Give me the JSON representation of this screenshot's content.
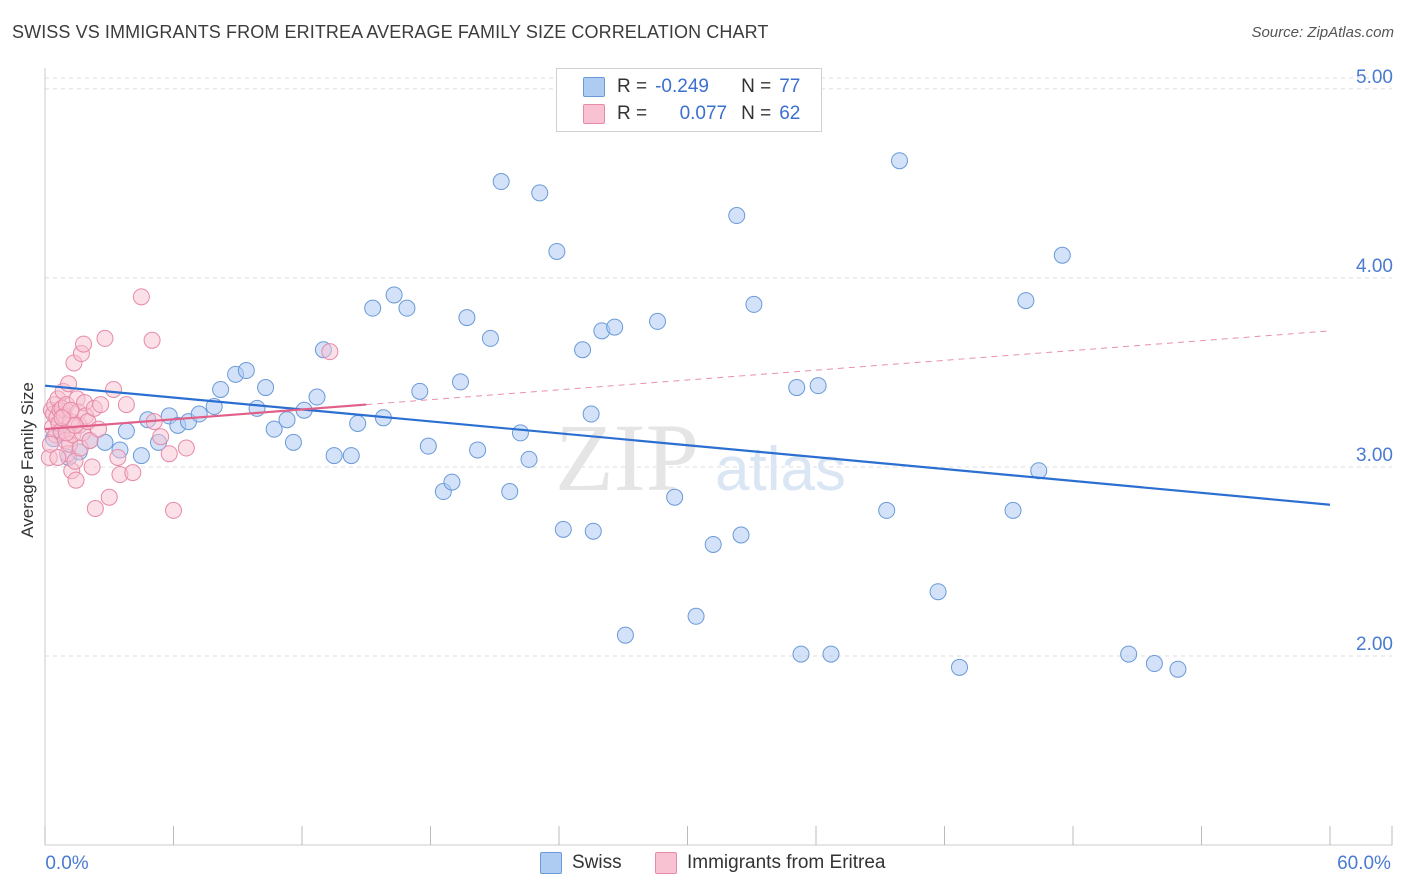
{
  "title": "SWISS VS IMMIGRANTS FROM ERITREA AVERAGE FAMILY SIZE CORRELATION CHART",
  "source": "Source: ZipAtlas.com",
  "watermark": {
    "zip": "ZIP",
    "atlas": "atlas"
  },
  "legend": {
    "swiss": {
      "r_label": "R =",
      "r_value": "-0.249",
      "n_label": "N =",
      "n_value": "77"
    },
    "eritrea": {
      "r_label": "R =",
      "r_value": "0.077",
      "n_label": "N =",
      "n_value": "62"
    }
  },
  "bottom_legend": {
    "swiss": "Swiss",
    "eritrea": "Immigrants from Eritrea"
  },
  "colors": {
    "swiss_fill": "#aecbf2",
    "swiss_stroke": "#6a9ad8",
    "swiss_line": "#2b6fd1",
    "eritrea_fill": "#f8c2d2",
    "eritrea_stroke": "#e68aa8",
    "eritrea_line": "#e0608a",
    "tick_text": "#4a7bd0",
    "grid": "#dddddd"
  },
  "chart_data": {
    "type": "scatter",
    "title": "SWISS VS IMMIGRANTS FROM ERITREA AVERAGE FAMILY SIZE CORRELATION CHART",
    "xlabel": "",
    "ylabel": "Average Family Size",
    "xlim": [
      0,
      60
    ],
    "ylim": [
      1.0,
      5.1
    ],
    "x_tick_labels": [
      "0.0%",
      "60.0%"
    ],
    "y_ticks": [
      2.0,
      3.0,
      4.0,
      5.0
    ],
    "y_tick_labels": [
      "2.00",
      "3.00",
      "4.00",
      "5.00"
    ],
    "grid": true,
    "legend_position": "top-center",
    "series": [
      {
        "name": "Swiss",
        "r": -0.249,
        "n": 77,
        "trend": {
          "x": [
            0,
            60
          ],
          "y": [
            3.43,
            2.8
          ]
        },
        "points": [
          [
            0.4,
            3.15
          ],
          [
            0.8,
            3.18
          ],
          [
            1.1,
            3.05
          ],
          [
            1.6,
            3.08
          ],
          [
            2.1,
            3.14
          ],
          [
            2.8,
            3.13
          ],
          [
            3.5,
            3.09
          ],
          [
            3.8,
            3.19
          ],
          [
            4.5,
            3.06
          ],
          [
            4.8,
            3.25
          ],
          [
            5.3,
            3.13
          ],
          [
            5.8,
            3.27
          ],
          [
            6.2,
            3.22
          ],
          [
            6.7,
            3.24
          ],
          [
            7.2,
            3.28
          ],
          [
            7.9,
            3.32
          ],
          [
            8.2,
            3.41
          ],
          [
            8.9,
            3.49
          ],
          [
            9.4,
            3.51
          ],
          [
            9.9,
            3.31
          ],
          [
            10.3,
            3.42
          ],
          [
            10.7,
            3.2
          ],
          [
            11.3,
            3.25
          ],
          [
            11.6,
            3.13
          ],
          [
            12.1,
            3.3
          ],
          [
            12.7,
            3.37
          ],
          [
            13.0,
            3.62
          ],
          [
            13.5,
            3.06
          ],
          [
            14.3,
            3.06
          ],
          [
            14.6,
            3.23
          ],
          [
            15.3,
            3.84
          ],
          [
            15.8,
            3.26
          ],
          [
            16.3,
            3.91
          ],
          [
            16.9,
            3.84
          ],
          [
            17.5,
            3.4
          ],
          [
            17.9,
            3.11
          ],
          [
            18.6,
            2.87
          ],
          [
            19.0,
            2.92
          ],
          [
            19.4,
            3.45
          ],
          [
            19.7,
            3.79
          ],
          [
            20.2,
            3.09
          ],
          [
            20.8,
            3.68
          ],
          [
            21.3,
            4.51
          ],
          [
            21.7,
            2.87
          ],
          [
            22.2,
            3.18
          ],
          [
            22.6,
            3.04
          ],
          [
            23.1,
            4.45
          ],
          [
            23.9,
            4.14
          ],
          [
            24.2,
            2.67
          ],
          [
            25.1,
            3.62
          ],
          [
            25.5,
            3.28
          ],
          [
            25.6,
            2.66
          ],
          [
            26.0,
            3.72
          ],
          [
            26.6,
            3.74
          ],
          [
            27.1,
            2.11
          ],
          [
            28.6,
            3.77
          ],
          [
            29.4,
            2.84
          ],
          [
            30.4,
            2.21
          ],
          [
            31.2,
            2.59
          ],
          [
            32.3,
            4.33
          ],
          [
            32.5,
            2.64
          ],
          [
            33.1,
            3.86
          ],
          [
            35.1,
            3.42
          ],
          [
            35.3,
            2.01
          ],
          [
            36.1,
            3.43
          ],
          [
            36.7,
            2.01
          ],
          [
            39.3,
            2.77
          ],
          [
            39.9,
            4.62
          ],
          [
            41.7,
            2.34
          ],
          [
            42.7,
            1.94
          ],
          [
            45.2,
            2.77
          ],
          [
            45.8,
            3.88
          ],
          [
            46.4,
            2.98
          ],
          [
            47.5,
            4.12
          ],
          [
            50.6,
            2.01
          ],
          [
            51.8,
            1.96
          ],
          [
            52.9,
            1.93
          ]
        ]
      },
      {
        "name": "Immigrants from Eritrea",
        "r": 0.077,
        "n": 62,
        "trend": {
          "x": [
            0,
            60
          ],
          "y": [
            3.2,
            3.72
          ]
        },
        "trend_solid_until_x": 15,
        "points": [
          [
            0.2,
            3.05
          ],
          [
            0.3,
            3.3
          ],
          [
            0.35,
            3.21
          ],
          [
            0.4,
            3.28
          ],
          [
            0.45,
            3.33
          ],
          [
            0.5,
            3.17
          ],
          [
            0.55,
            3.26
          ],
          [
            0.6,
            3.36
          ],
          [
            0.65,
            3.23
          ],
          [
            0.7,
            3.3
          ],
          [
            0.75,
            3.19
          ],
          [
            0.8,
            3.31
          ],
          [
            0.85,
            3.4
          ],
          [
            0.9,
            3.27
          ],
          [
            0.95,
            3.14
          ],
          [
            1.0,
            3.33
          ],
          [
            1.05,
            3.07
          ],
          [
            1.1,
            3.44
          ],
          [
            1.15,
            3.12
          ],
          [
            1.2,
            3.24
          ],
          [
            1.25,
            2.98
          ],
          [
            1.3,
            3.17
          ],
          [
            1.35,
            3.55
          ],
          [
            1.4,
            3.03
          ],
          [
            1.45,
            2.93
          ],
          [
            1.5,
            3.36
          ],
          [
            1.55,
            3.29
          ],
          [
            1.6,
            3.22
          ],
          [
            1.65,
            3.1
          ],
          [
            1.7,
            3.6
          ],
          [
            1.75,
            3.18
          ],
          [
            1.8,
            3.65
          ],
          [
            1.85,
            3.34
          ],
          [
            1.9,
            3.27
          ],
          [
            2.0,
            3.24
          ],
          [
            2.1,
            3.14
          ],
          [
            2.2,
            3.0
          ],
          [
            2.3,
            3.31
          ],
          [
            2.35,
            2.78
          ],
          [
            2.5,
            3.2
          ],
          [
            2.6,
            3.33
          ],
          [
            2.8,
            3.68
          ],
          [
            3.0,
            2.84
          ],
          [
            3.2,
            3.41
          ],
          [
            3.4,
            3.05
          ],
          [
            3.5,
            2.96
          ],
          [
            3.8,
            3.33
          ],
          [
            4.1,
            2.97
          ],
          [
            4.5,
            3.9
          ],
          [
            5.0,
            3.67
          ],
          [
            5.1,
            3.24
          ],
          [
            5.4,
            3.16
          ],
          [
            5.8,
            3.07
          ],
          [
            6.0,
            2.77
          ],
          [
            6.6,
            3.1
          ],
          [
            13.3,
            3.61
          ],
          [
            0.25,
            3.12
          ],
          [
            0.6,
            3.05
          ],
          [
            1.0,
            3.18
          ],
          [
            1.2,
            3.3
          ],
          [
            1.4,
            3.22
          ],
          [
            0.8,
            3.26
          ]
        ]
      }
    ]
  }
}
